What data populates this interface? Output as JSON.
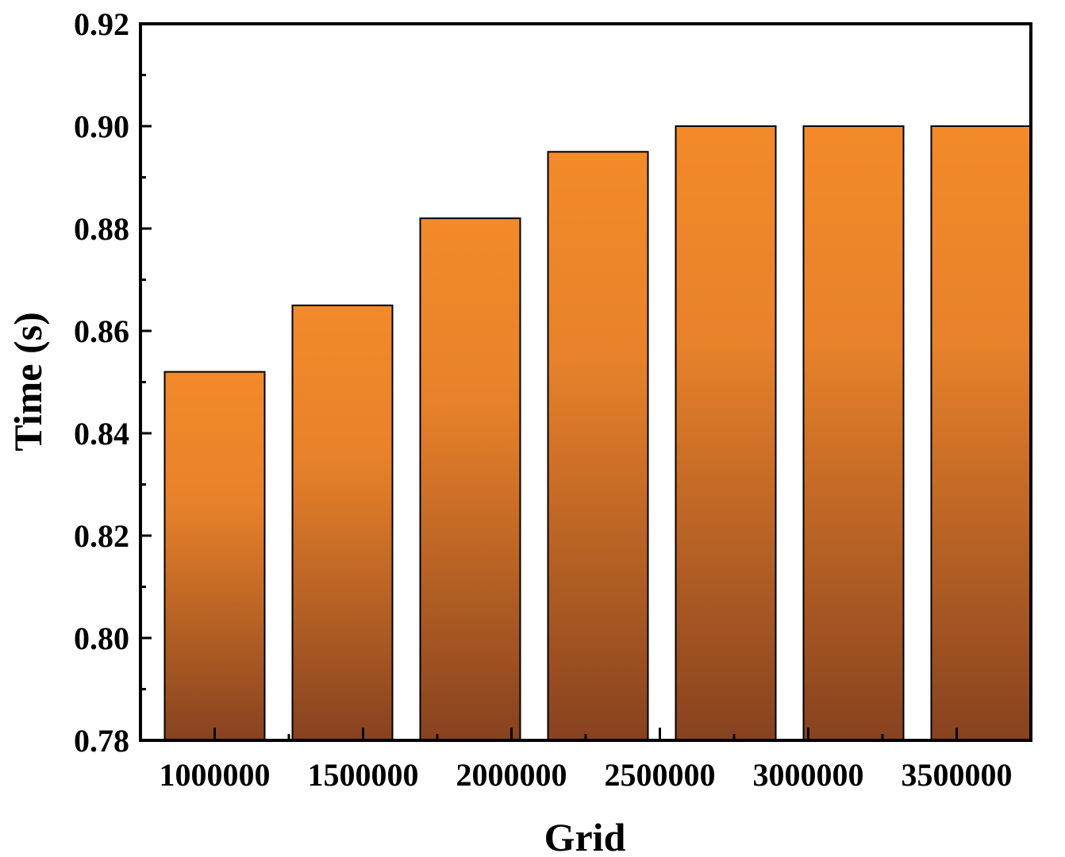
{
  "chart_data": {
    "type": "bar",
    "title": "",
    "xlabel": "Grid",
    "ylabel": "Time (s)",
    "categories": [
      "1000000",
      "1500000",
      "2000000",
      "2500000",
      "3000000",
      "3500000"
    ],
    "bars": [
      {
        "x": 1000000,
        "value": 0.852
      },
      {
        "x": 1250000,
        "value": 0.865
      },
      {
        "x": 1500000,
        "value": 0.882
      },
      {
        "x": 2000000,
        "value": 0.895
      },
      {
        "x": 2500000,
        "value": 0.9
      },
      {
        "x": 3000000,
        "value": 0.9
      },
      {
        "x": 3500000,
        "value": 0.9
      }
    ],
    "xlim": [
      750000,
      3750000
    ],
    "ylim": [
      0.78,
      0.92
    ],
    "yticks": [
      "0.78",
      "0.80",
      "0.82",
      "0.84",
      "0.86",
      "0.88",
      "0.90",
      "0.92"
    ],
    "grid": false,
    "legend": "none",
    "colors": {
      "bar_top": "#f28a2a",
      "bar_bottom": "#87421f",
      "bar_edge": "#000000",
      "axis": "#000000"
    }
  }
}
